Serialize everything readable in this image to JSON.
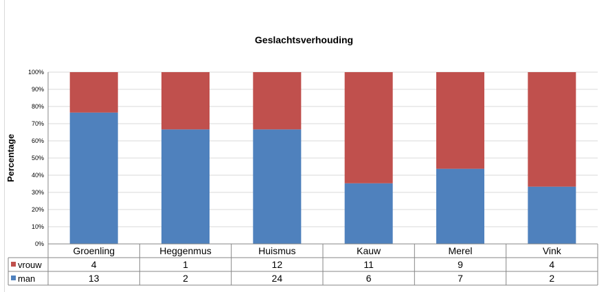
{
  "chart_data": {
    "type": "bar",
    "stacked": "percent",
    "title": "Geslachtsverhouding",
    "ylabel": "Percentage",
    "xlabel": "",
    "ylim": [
      0,
      100
    ],
    "y_ticks": [
      "0%",
      "10%",
      "20%",
      "30%",
      "40%",
      "50%",
      "60%",
      "70%",
      "80%",
      "90%",
      "100%"
    ],
    "grid": true,
    "categories": [
      "Groenling",
      "Heggenmus",
      "Huismus",
      "Kauw",
      "Merel",
      "Vink"
    ],
    "series": [
      {
        "name": "vrouw",
        "color": "#c0504d",
        "values": [
          4,
          1,
          12,
          11,
          9,
          4
        ]
      },
      {
        "name": "man",
        "color": "#4f81bd",
        "values": [
          13,
          2,
          24,
          6,
          7,
          2
        ]
      }
    ],
    "data_table": true
  }
}
